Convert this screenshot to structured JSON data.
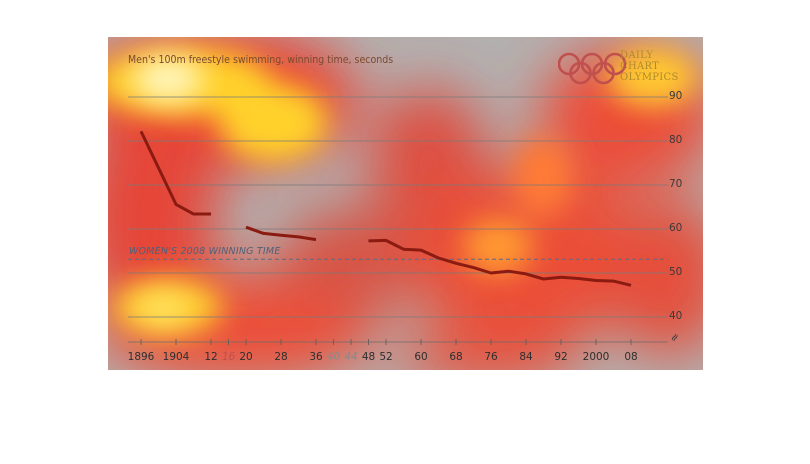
{
  "chart_data": {
    "type": "line",
    "title": "Men's 100m freestyle swimming, winning time, seconds",
    "brand": {
      "name": "DAILY CHART OLYMPICS",
      "lines": [
        "DAILY",
        "CHART",
        "OLYMPICS"
      ],
      "ring_colors": [
        "#c0504d",
        "#c0504d",
        "#c0504d",
        "#c0504d",
        "#c0504d"
      ]
    },
    "ylim": [
      34,
      100
    ],
    "yticks": [
      40,
      50,
      60,
      70,
      80,
      90
    ],
    "ytick_labels": [
      "40",
      "50",
      "60",
      "70",
      "80",
      "90"
    ],
    "axis_break_label": "≈",
    "xlim": [
      1894,
      2010
    ],
    "xticks": [
      {
        "year": 1896,
        "label": "1896",
        "status": "held"
      },
      {
        "year": 1904,
        "label": "1904",
        "status": "held"
      },
      {
        "year": 1912,
        "label": "12",
        "status": "held"
      },
      {
        "year": 1916,
        "label": "16",
        "status": "cancelled-ww1"
      },
      {
        "year": 1920,
        "label": "20",
        "status": "held"
      },
      {
        "year": 1928,
        "label": "28",
        "status": "held"
      },
      {
        "year": 1936,
        "label": "36",
        "status": "held"
      },
      {
        "year": 1940,
        "label": "40",
        "status": "cancelled"
      },
      {
        "year": 1944,
        "label": "44",
        "status": "cancelled"
      },
      {
        "year": 1948,
        "label": "48",
        "status": "held"
      },
      {
        "year": 1952,
        "label": "52",
        "status": "held"
      },
      {
        "year": 1960,
        "label": "60",
        "status": "held"
      },
      {
        "year": 1968,
        "label": "68",
        "status": "held"
      },
      {
        "year": 1976,
        "label": "76",
        "status": "held"
      },
      {
        "year": 1984,
        "label": "84",
        "status": "held"
      },
      {
        "year": 1992,
        "label": "92",
        "status": "held"
      },
      {
        "year": 2000,
        "label": "2000",
        "status": "held"
      },
      {
        "year": 2008,
        "label": "08",
        "status": "held"
      }
    ],
    "series": [
      {
        "color": "#8b1a10",
        "segments": [
          {
            "x": [
              1896,
              1904,
              1908,
              1912
            ],
            "y": [
              82.2,
              65.6,
              63.4,
              63.4
            ]
          },
          {
            "x": [
              1920,
              1924,
              1928,
              1932,
              1936
            ],
            "y": [
              60.4,
              59.0,
              58.6,
              58.2,
              57.6
            ]
          },
          {
            "x": [
              1948,
              1952,
              1956,
              1960,
              1964,
              1968,
              1972,
              1976,
              1980,
              1984,
              1988,
              1992,
              1996,
              2000,
              2004,
              2008
            ],
            "y": [
              57.3,
              57.4,
              55.4,
              55.2,
              53.4,
              52.2,
              51.22,
              49.99,
              50.4,
              49.8,
              48.63,
              49.02,
              48.74,
              48.3,
              48.17,
              47.21
            ]
          }
        ]
      }
    ],
    "reference_line": {
      "label": "WOMEN'S 2008 WINNING TIME",
      "y": 53.12,
      "style": "dashed",
      "color": "#5a6a86"
    },
    "grid": true,
    "colors": {
      "background": "#b0b0b0",
      "gridline": "#7a7a7a",
      "line": "#8b1a10",
      "rings": "#c0504d",
      "brand_text": "#b08a2a"
    }
  }
}
